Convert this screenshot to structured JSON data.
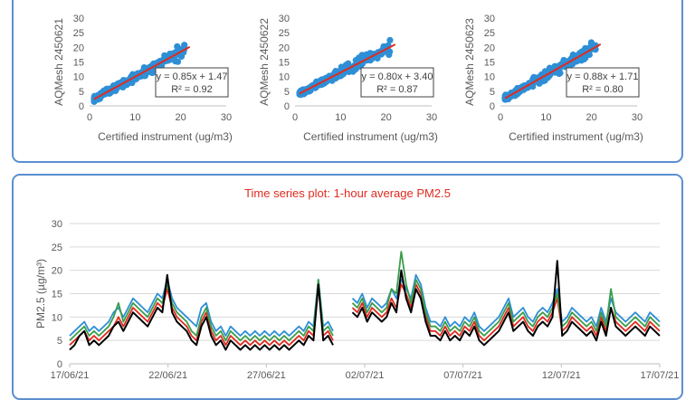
{
  "chart_data": [
    {
      "type": "scatter",
      "xlabel": "Certified instrument (ug/m3)",
      "ylabel": "AQMesh 2450621",
      "xlim": [
        0,
        30
      ],
      "ylim": [
        0,
        30
      ],
      "xticks": [
        "0",
        "10",
        "20",
        "30"
      ],
      "yticks": [
        "0",
        "5",
        "10",
        "15",
        "20",
        "25",
        "30"
      ],
      "trendline": {
        "slope": 0.85,
        "intercept": 1.47
      },
      "equation": "y = 0.85x + 1.47",
      "r2": "R² = 0.92",
      "colors": {
        "points": "#2e8fd6",
        "trend": "#e02b20"
      },
      "seed": 11
    },
    {
      "type": "scatter",
      "xlabel": "Certified instrument (ug/m3)",
      "ylabel": "AQMesh 2450622",
      "xlim": [
        0,
        30
      ],
      "ylim": [
        0,
        30
      ],
      "xticks": [
        "0",
        "10",
        "20",
        "30"
      ],
      "yticks": [
        "0",
        "5",
        "10",
        "15",
        "20",
        "25",
        "30"
      ],
      "trendline": {
        "slope": 0.8,
        "intercept": 3.4
      },
      "equation": "y = 0.80x + 3.40",
      "r2": "R² = 0.87",
      "colors": {
        "points": "#2e8fd6",
        "trend": "#e02b20"
      },
      "seed": 23
    },
    {
      "type": "scatter",
      "xlabel": "Certified instrument (ug/m3)",
      "ylabel": "AQMesh 2450623",
      "xlim": [
        0,
        30
      ],
      "ylim": [
        0,
        30
      ],
      "xticks": [
        "0",
        "10",
        "20",
        "30"
      ],
      "yticks": [
        "0",
        "5",
        "10",
        "15",
        "20",
        "25",
        "30"
      ],
      "trendline": {
        "slope": 0.88,
        "intercept": 1.71
      },
      "equation": "y = 0.88x + 1.71",
      "r2": "R² = 0.80",
      "colors": {
        "points": "#2e8fd6",
        "trend": "#e02b20"
      },
      "seed": 37
    },
    {
      "type": "line",
      "title": "Time series plot: 1-hour average PM2.5",
      "ylabel": "PM2.5 (µg/m³)",
      "ylim": [
        0,
        30
      ],
      "yticks": [
        "0",
        "5",
        "10",
        "15",
        "20",
        "25",
        "30"
      ],
      "xlim": [
        "17/06/21",
        "17/07/21"
      ],
      "xticks": [
        "17/06/21",
        "22/06/21",
        "27/06/21",
        "02/07/21",
        "07/07/21",
        "12/07/21",
        "17/07/21"
      ],
      "gap": [
        "29/06/21",
        "30/06/21"
      ],
      "series": [
        {
          "color": "#2e8fd6",
          "values": [
            6,
            7,
            8,
            9,
            7,
            8,
            7,
            8,
            9,
            11,
            12,
            10,
            12,
            14,
            13,
            12,
            11,
            13,
            15,
            14,
            18,
            14,
            12,
            11,
            10,
            9,
            8,
            12,
            13,
            9,
            7,
            8,
            6,
            8,
            7,
            6,
            7,
            6,
            7,
            6,
            7,
            6,
            7,
            6,
            7,
            6,
            7,
            8,
            7,
            9,
            8,
            18,
            8,
            9,
            7,
            null,
            null,
            null,
            14,
            13,
            15,
            12,
            14,
            13,
            12,
            13,
            16,
            14,
            18,
            16,
            14,
            19,
            17,
            12,
            9,
            9,
            8,
            10,
            8,
            9,
            8,
            10,
            9,
            11,
            8,
            7,
            8,
            9,
            10,
            12,
            14,
            10,
            11,
            12,
            10,
            9,
            11,
            12,
            11,
            13,
            16,
            9,
            10,
            12,
            11,
            10,
            9,
            10,
            8,
            12,
            9,
            14,
            11,
            10,
            9,
            10,
            11,
            10,
            9,
            11,
            10,
            9
          ]
        },
        {
          "color": "#e02b20",
          "values": [
            4,
            5,
            6,
            7,
            5,
            6,
            5,
            6,
            7,
            8,
            10,
            8,
            10,
            12,
            11,
            10,
            9,
            11,
            13,
            12,
            16,
            12,
            10,
            9,
            8,
            6,
            5,
            9,
            11,
            7,
            5,
            6,
            4,
            6,
            5,
            4,
            5,
            4,
            5,
            4,
            5,
            4,
            5,
            4,
            5,
            4,
            5,
            6,
            5,
            7,
            6,
            17,
            6,
            7,
            5,
            null,
            null,
            null,
            12,
            11,
            13,
            10,
            12,
            11,
            10,
            11,
            14,
            12,
            17,
            15,
            12,
            17,
            15,
            10,
            7,
            7,
            6,
            8,
            6,
            7,
            6,
            8,
            7,
            9,
            6,
            5,
            6,
            7,
            8,
            10,
            12,
            8,
            9,
            10,
            8,
            7,
            9,
            10,
            9,
            11,
            14,
            7,
            8,
            10,
            9,
            8,
            7,
            8,
            6,
            10,
            7,
            12,
            9,
            8,
            7,
            8,
            9,
            8,
            7,
            9,
            8,
            7
          ]
        },
        {
          "color": "#3a9e4a",
          "values": [
            5,
            6,
            7,
            8,
            6,
            7,
            6,
            7,
            8,
            10,
            13,
            9,
            11,
            13,
            12,
            11,
            10,
            12,
            14,
            13,
            17,
            13,
            11,
            10,
            9,
            7,
            6,
            10,
            12,
            8,
            6,
            7,
            5,
            7,
            6,
            5,
            6,
            5,
            6,
            5,
            6,
            5,
            6,
            5,
            6,
            5,
            6,
            7,
            6,
            8,
            7,
            18,
            7,
            8,
            6,
            null,
            null,
            null,
            13,
            12,
            14,
            11,
            13,
            12,
            11,
            12,
            16,
            15,
            24,
            17,
            13,
            18,
            16,
            11,
            8,
            8,
            7,
            9,
            7,
            8,
            7,
            9,
            8,
            10,
            7,
            6,
            7,
            8,
            9,
            11,
            13,
            9,
            10,
            11,
            9,
            8,
            10,
            11,
            10,
            12,
            15,
            8,
            9,
            11,
            10,
            9,
            8,
            9,
            7,
            11,
            8,
            16,
            10,
            9,
            8,
            9,
            10,
            9,
            8,
            10,
            9,
            8
          ]
        },
        {
          "color": "#000000",
          "values": [
            3,
            4,
            6,
            7,
            4,
            5,
            4,
            5,
            6,
            8,
            9,
            7,
            9,
            11,
            10,
            9,
            8,
            10,
            12,
            11,
            19,
            11,
            9,
            8,
            7,
            5,
            4,
            8,
            10,
            6,
            4,
            5,
            3,
            5,
            4,
            3,
            4,
            3,
            4,
            3,
            4,
            3,
            4,
            3,
            4,
            3,
            4,
            5,
            4,
            6,
            5,
            17,
            5,
            6,
            4,
            null,
            null,
            null,
            11,
            10,
            12,
            9,
            11,
            10,
            9,
            10,
            13,
            11,
            20,
            14,
            11,
            16,
            14,
            9,
            6,
            6,
            5,
            7,
            5,
            6,
            5,
            7,
            6,
            8,
            5,
            4,
            5,
            6,
            7,
            9,
            11,
            7,
            8,
            9,
            7,
            6,
            8,
            9,
            8,
            10,
            22,
            6,
            7,
            9,
            8,
            7,
            6,
            7,
            5,
            9,
            6,
            12,
            8,
            7,
            6,
            7,
            8,
            7,
            6,
            8,
            7,
            6
          ]
        }
      ]
    }
  ]
}
